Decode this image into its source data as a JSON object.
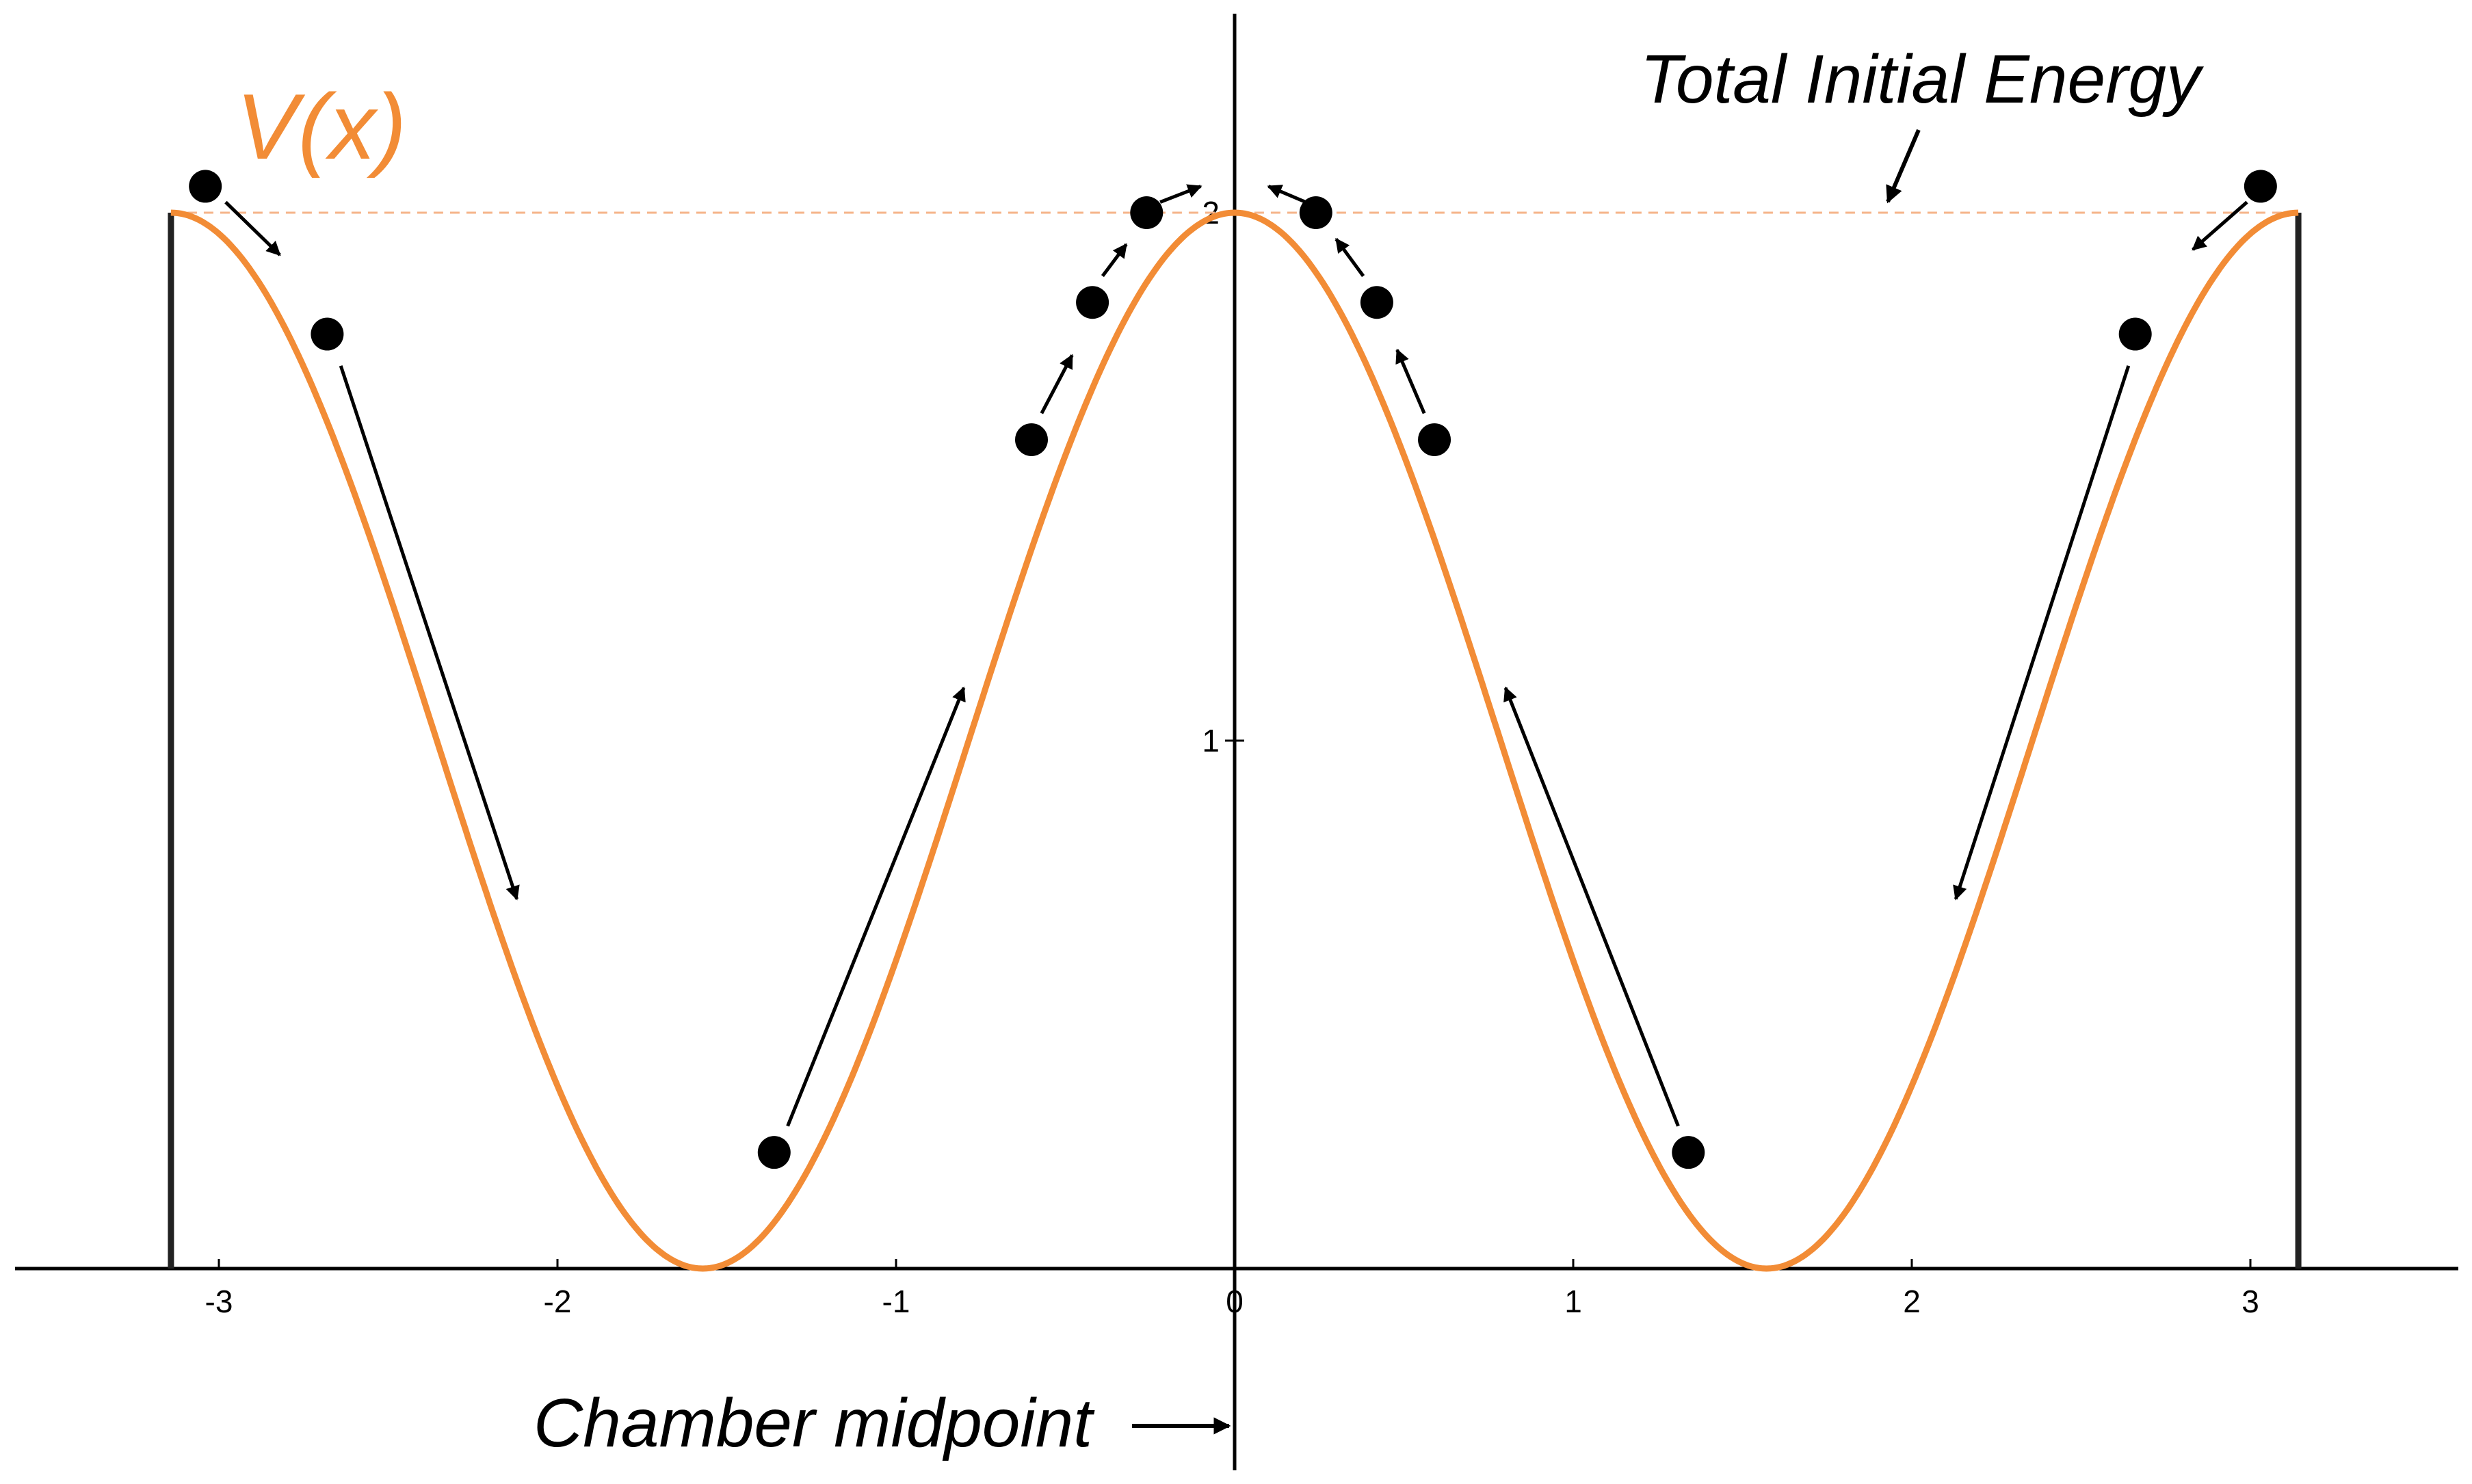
{
  "chart_data": {
    "type": "line",
    "series": [
      {
        "name": "V(x)",
        "function": "1 + cos(2x)",
        "x_range": [
          -3.14159,
          3.14159
        ],
        "color": "#F28C36"
      }
    ],
    "x_ticks": [
      -3,
      -2,
      -1,
      0,
      1,
      2,
      3
    ],
    "y_ticks": [
      1,
      2
    ],
    "x_tick_labels": [
      "-3",
      "-2",
      "-1",
      "0",
      "1",
      "2",
      "3"
    ],
    "y_tick_labels": [
      "1",
      "2"
    ],
    "xlim": [
      -3.6,
      3.6
    ],
    "ylim": [
      0,
      2.4
    ],
    "grid": false,
    "walls": {
      "x": [
        -3.14159,
        3.14159
      ]
    },
    "total_energy": 2,
    "balls": [
      {
        "x": -3.04,
        "y": 2.05
      },
      {
        "x": -2.68,
        "y": 1.77
      },
      {
        "x": -1.36,
        "y": 0.22
      },
      {
        "x": -0.6,
        "y": 1.57
      },
      {
        "x": -0.42,
        "y": 1.83
      },
      {
        "x": -0.26,
        "y": 2.0
      },
      {
        "x": 0.24,
        "y": 2.0
      },
      {
        "x": 0.42,
        "y": 1.83
      },
      {
        "x": 0.59,
        "y": 1.57
      },
      {
        "x": 1.34,
        "y": 0.22
      },
      {
        "x": 2.66,
        "y": 1.77
      },
      {
        "x": 3.03,
        "y": 2.05
      }
    ],
    "motion_arrows": [
      {
        "from": [
          -2.98,
          2.02
        ],
        "to": [
          -2.82,
          1.92
        ]
      },
      {
        "from": [
          -2.64,
          1.71
        ],
        "to": [
          -2.12,
          0.7
        ]
      },
      {
        "from": [
          -1.32,
          0.27
        ],
        "to": [
          -0.8,
          1.1
        ]
      },
      {
        "from": [
          -0.57,
          1.62
        ],
        "to": [
          -0.48,
          1.73
        ]
      },
      {
        "from": [
          -0.39,
          1.88
        ],
        "to": [
          -0.32,
          1.94
        ]
      },
      {
        "from": [
          -0.22,
          2.02
        ],
        "to": [
          -0.1,
          2.05
        ]
      },
      {
        "from": [
          0.21,
          2.02
        ],
        "to": [
          0.1,
          2.05
        ]
      },
      {
        "from": [
          0.38,
          1.88
        ],
        "to": [
          0.3,
          1.95
        ]
      },
      {
        "from": [
          0.56,
          1.62
        ],
        "to": [
          0.48,
          1.74
        ]
      },
      {
        "from": [
          1.31,
          0.27
        ],
        "to": [
          0.8,
          1.1
        ]
      },
      {
        "from": [
          2.64,
          1.71
        ],
        "to": [
          2.13,
          0.7
        ]
      },
      {
        "from": [
          2.99,
          2.02
        ],
        "to": [
          2.83,
          1.93
        ]
      }
    ],
    "annotations": {
      "curve_label": "V(x)",
      "energy_label": "Total Initial Energy",
      "midpoint_label": "Chamber midpoint"
    }
  }
}
